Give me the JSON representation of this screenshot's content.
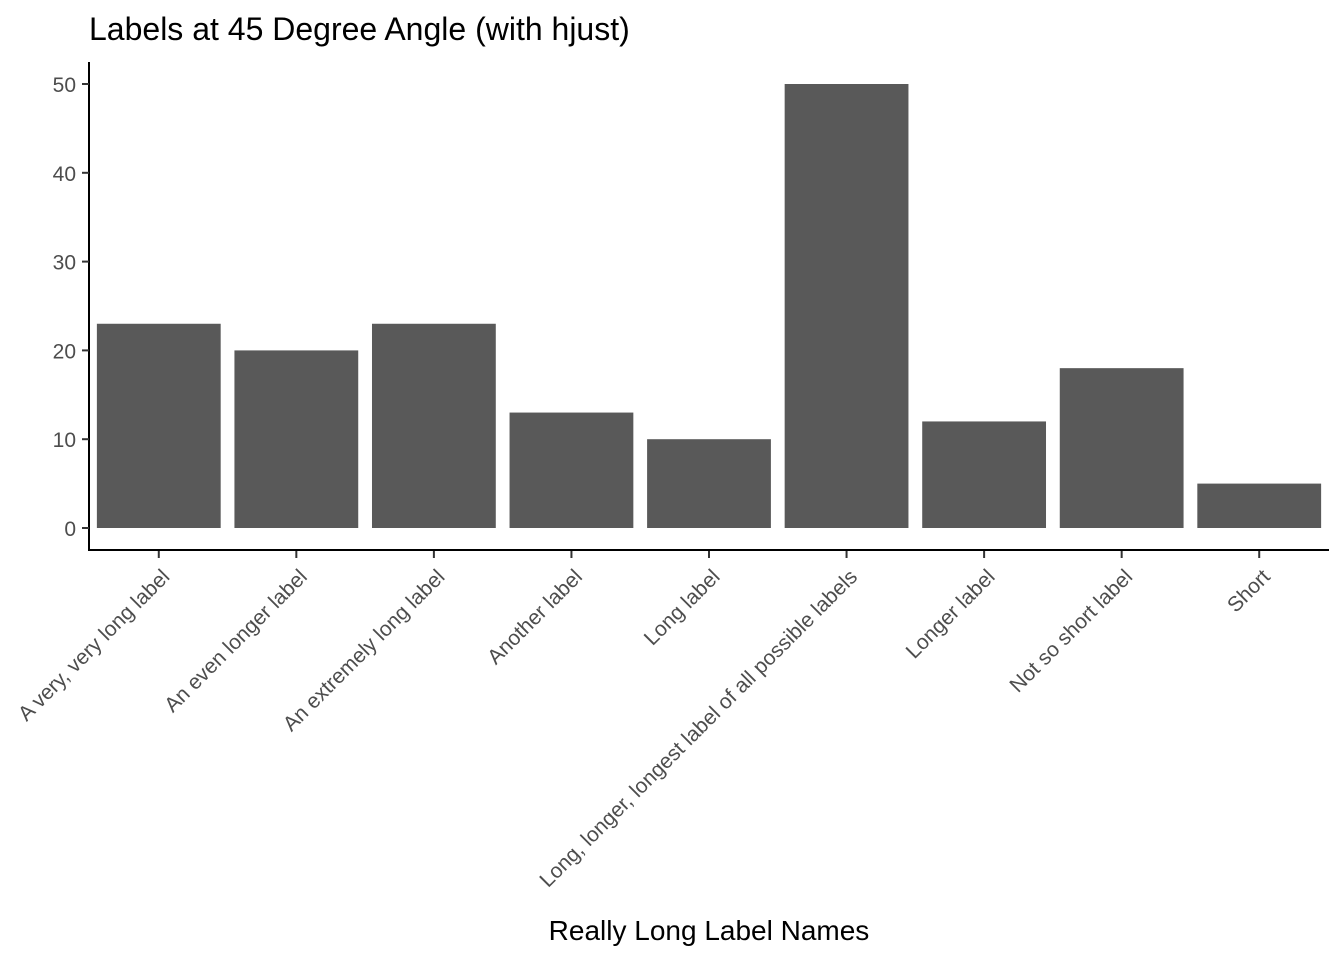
{
  "chart_data": {
    "type": "bar",
    "title": "Labels at 45 Degree Angle (with hjust)",
    "xlabel": "Really Long Label Names",
    "ylabel": "",
    "categories": [
      "A very, very long label",
      "An even longer label",
      "An extremely long label",
      "Another label",
      "Long label",
      "Long, longer, longest label of all possible labels",
      "Longer label",
      "Not so short label",
      "Short"
    ],
    "values": [
      23,
      20,
      23,
      13,
      10,
      50,
      12,
      18,
      5
    ],
    "ylim": [
      0,
      50
    ],
    "yticks": [
      0,
      10,
      20,
      30,
      40,
      50
    ],
    "grid": false,
    "legend": "none",
    "bar_color": "#595959",
    "axis_color": "#000000",
    "tick_label_color": "#4d4d4d"
  }
}
